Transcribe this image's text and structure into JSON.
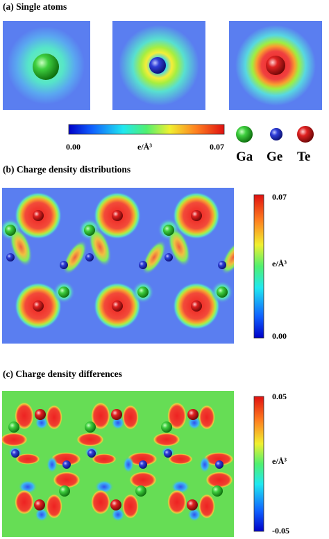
{
  "panels": {
    "a": {
      "title": "(a) Single atoms"
    },
    "b": {
      "title": "(b) Charge density distributions"
    },
    "c": {
      "title": "(c) Charge density differences"
    }
  },
  "colorbar_a": {
    "min": "0.00",
    "mid": "e/Å³",
    "max": "0.07"
  },
  "colorbar_b": {
    "min": "0.00",
    "mid": "e/Å³",
    "max": "0.07"
  },
  "colorbar_c": {
    "min": "-0.05",
    "mid": "e/Å³",
    "max": "0.05"
  },
  "legend": [
    {
      "symbol": "Ga",
      "color": "#2bb52b"
    },
    {
      "symbol": "Ge",
      "color": "#2a2fc0"
    },
    {
      "symbol": "Te",
      "color": "#d11a1a"
    }
  ],
  "colors": {
    "background_field": "#5a7ef0",
    "diff_background": "#66dd55"
  }
}
